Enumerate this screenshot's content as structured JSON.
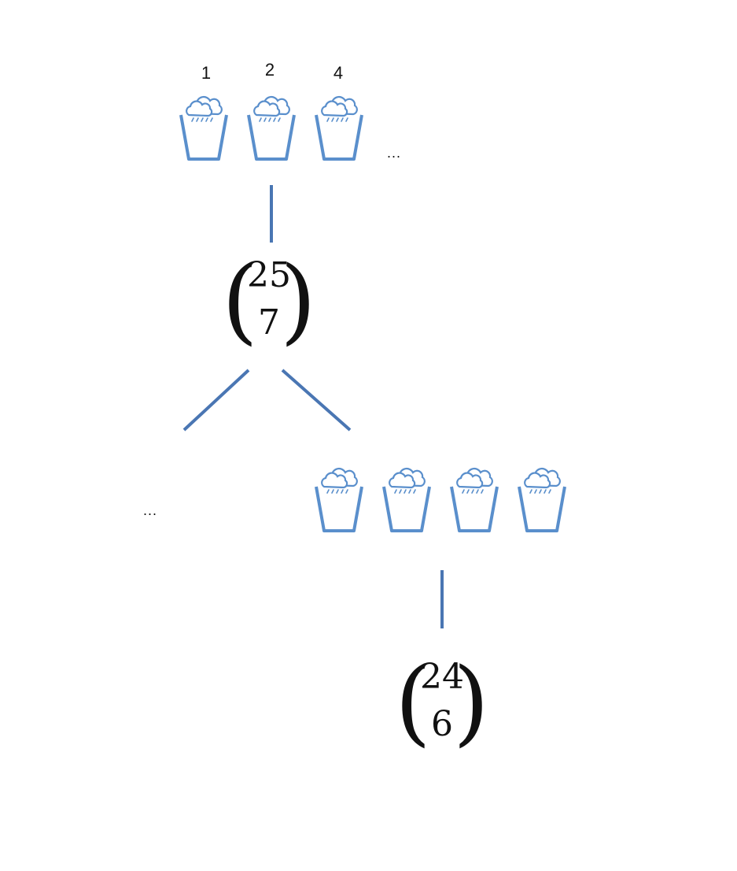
{
  "top_row": {
    "labels": [
      "1",
      "2",
      "4"
    ],
    "ellipsis": "..."
  },
  "binom_top": {
    "n": "25",
    "k": "7"
  },
  "bottom_row": {
    "ellipsis": "..."
  },
  "binom_bottom": {
    "n": "24",
    "k": "6"
  },
  "colors": {
    "line": "#4a76b3",
    "bucket": "#5a8fcc",
    "cloud": "#5a8fcc"
  },
  "icons": {
    "bucket": "rain-bucket-icon"
  }
}
